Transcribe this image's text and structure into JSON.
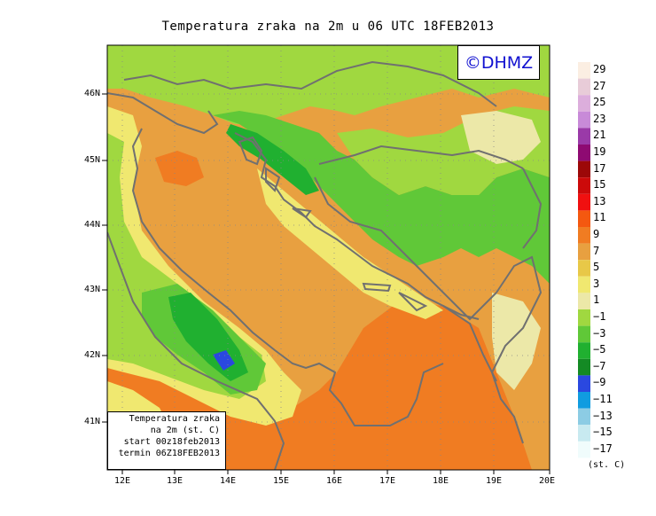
{
  "title": "Temperatura zraka na 2m u 06 UTC 18FEB2013",
  "logo": "©DHMZ",
  "info_box": {
    "line1": "Temperatura zraka",
    "line2": "na 2m (st. C)",
    "line3": "start 00z18feb2013",
    "line4": "termin 06Z18FEB2013"
  },
  "lat_labels": [
    "46N",
    "45N",
    "44N",
    "43N",
    "42N",
    "41N"
  ],
  "lon_labels": [
    "12E",
    "13E",
    "14E",
    "15E",
    "16E",
    "17E",
    "18E",
    "19E",
    "20E"
  ],
  "colorbar": {
    "units": "(st. C)",
    "labels": [
      "29",
      "27",
      "25",
      "23",
      "21",
      "19",
      "17",
      "15",
      "13",
      "11",
      "9",
      "7",
      "5",
      "3",
      "1",
      "−1",
      "−3",
      "−5",
      "−7",
      "−9",
      "−11",
      "−13",
      "−15",
      "−17"
    ],
    "colors": [
      "#fbeee2",
      "#e8ccd8",
      "#dcaedc",
      "#c88ad8",
      "#9a3aa8",
      "#8e0a72",
      "#9c0808",
      "#cc0a0a",
      "#f01010",
      "#f45810",
      "#f07c22",
      "#e8a040",
      "#e8c848",
      "#f0e870",
      "#ece8a8",
      "#a0d840",
      "#60c838",
      "#20b030",
      "#148a24",
      "#2a48e0",
      "#109ce0",
      "#8ccce4",
      "#c8eaf0",
      "#f0fcfc"
    ]
  }
}
